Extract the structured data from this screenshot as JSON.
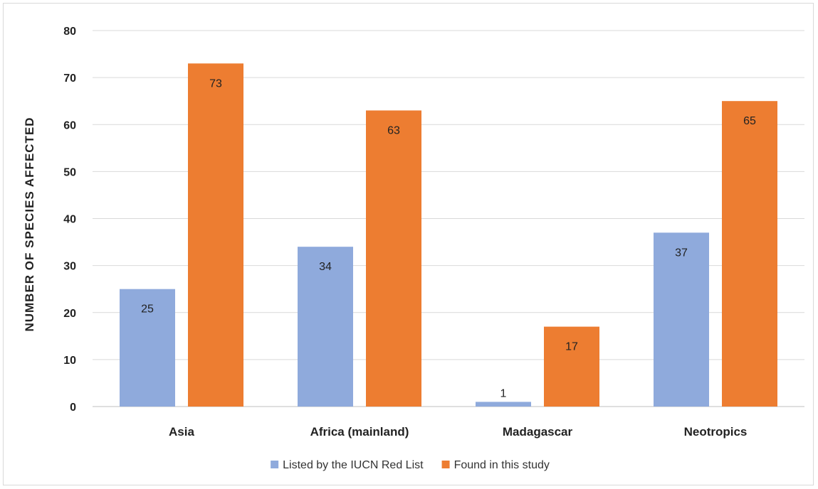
{
  "chart_data": {
    "type": "bar",
    "title": "",
    "xlabel": "",
    "ylabel": "NUMBER OF SPECIES AFFECTED",
    "ylim": [
      0,
      80
    ],
    "yticks": [
      0,
      10,
      20,
      30,
      40,
      50,
      60,
      70,
      80
    ],
    "categories": [
      "Asia",
      "Africa (mainland)",
      "Madagascar",
      "Neotropics"
    ],
    "series": [
      {
        "name": "Listed by the IUCN Red List",
        "values": [
          25,
          34,
          1,
          37
        ],
        "color": "#8faadc"
      },
      {
        "name": "Found in this study",
        "values": [
          73,
          63,
          17,
          65
        ],
        "color": "#ed7d31"
      }
    ],
    "grid": true,
    "legend_position": "bottom",
    "data_labels": true
  }
}
